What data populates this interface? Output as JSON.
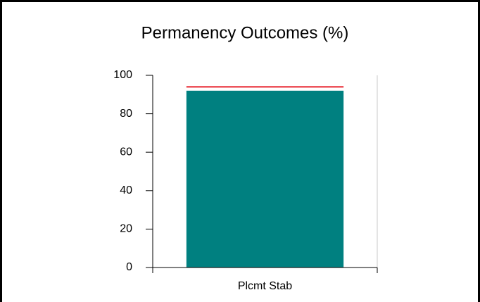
{
  "chart_data": {
    "type": "bar",
    "title": "Permanency Outcomes (%)",
    "categories": [
      "Plcmt Stab"
    ],
    "values": [
      92
    ],
    "color": "#008080",
    "target": 94,
    "target_color": "#e8202a",
    "ylim": [
      0,
      100
    ],
    "yticks": [
      0,
      20,
      40,
      60,
      80,
      100
    ],
    "grid": false
  }
}
